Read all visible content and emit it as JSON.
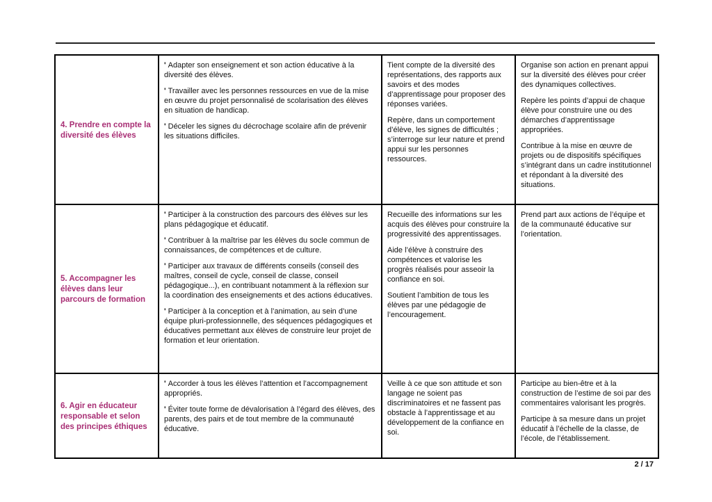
{
  "page": {
    "footer": "2 / 17"
  },
  "bullet_char": "'",
  "colors": {
    "competency_heading": "#a82e74",
    "table_border": "#000000",
    "body_text": "#111111"
  },
  "table": {
    "rows": [
      {
        "competency": "4. Prendre en compte la diversité des élèves",
        "col2": [
          "Adapter son enseignement et son action éducative à la diversité des élèves.",
          "Travailler avec les personnes ressources en vue de la mise en œuvre du projet personnalisé de scolarisation des élèves en situation de handicap.",
          "Déceler les signes du décrochage scolaire afin de prévenir les situations difficiles."
        ],
        "col3": [
          "Tient compte de la diversité des représentations, des rapports aux savoirs et des modes d’apprentissage pour proposer des réponses variées.",
          "Repère, dans un comportement d’élève, les signes de difficultés ; s’interroge sur leur nature et prend appui sur les personnes ressources."
        ],
        "col4": [
          "Organise son action en prenant appui sur la diversité des élèves pour créer des dynamiques collectives.",
          "Repère les points d’appui de chaque élève pour construire une ou des démarches d’apprentissage appropriées.",
          "Contribue à la mise en œuvre de projets ou de dispositifs spécifiques s’intégrant dans un cadre institutionnel et répondant à la diversité des situations."
        ]
      },
      {
        "competency": "5. Accompagner les élèves dans leur parcours de formation",
        "col2": [
          "Participer à la construction des parcours des élèves sur les plans pédagogique et éducatif.",
          "Contribuer à la maîtrise par les élèves du socle commun de connaissances, de compétences et de culture.",
          "Participer aux travaux de différents conseils (conseil des maîtres, conseil de cycle, conseil de classe, conseil pédagogique...), en contribuant notamment à la réflexion sur la coordination des enseignements et des actions éducatives.",
          "Participer à la conception et à l’animation, au sein d’une équipe pluri-professionnelle, des séquences pédagogiques et éducatives permettant aux élèves de construire leur projet de formation et leur orientation."
        ],
        "col3": [
          "Recueille des informations sur les acquis des élèves pour construire la progressivité des apprentissages.",
          "Aide l’élève à construire des compétences et valorise les progrès réalisés pour asseoir la confiance en soi.",
          "Soutient l’ambition de tous les élèves par une pédagogie de l’encouragement."
        ],
        "col4": [
          "Prend part aux actions de l’équipe et de la communauté éducative sur l’orientation."
        ]
      },
      {
        "competency": "6. Agir en éducateur responsable et selon des principes éthiques",
        "col2": [
          "Accorder à tous les élèves l’attention et l’accompagnement appropriés.",
          "Éviter toute forme de dévalorisation à l’égard des élèves, des parents, des pairs et de tout membre de la communauté éducative."
        ],
        "col3": [
          "Veille à ce que son attitude et son langage ne soient pas discriminatoires et ne fassent pas obstacle à l’apprentissage et au développement de la confiance en soi."
        ],
        "col4": [
          "Participe au bien-être et à la construction de l’estime de soi par des commentaires valorisant les progrès.",
          "Participe à sa mesure dans un projet éducatif à l’échelle de la classe, de l’école, de l’établissement."
        ]
      }
    ]
  }
}
